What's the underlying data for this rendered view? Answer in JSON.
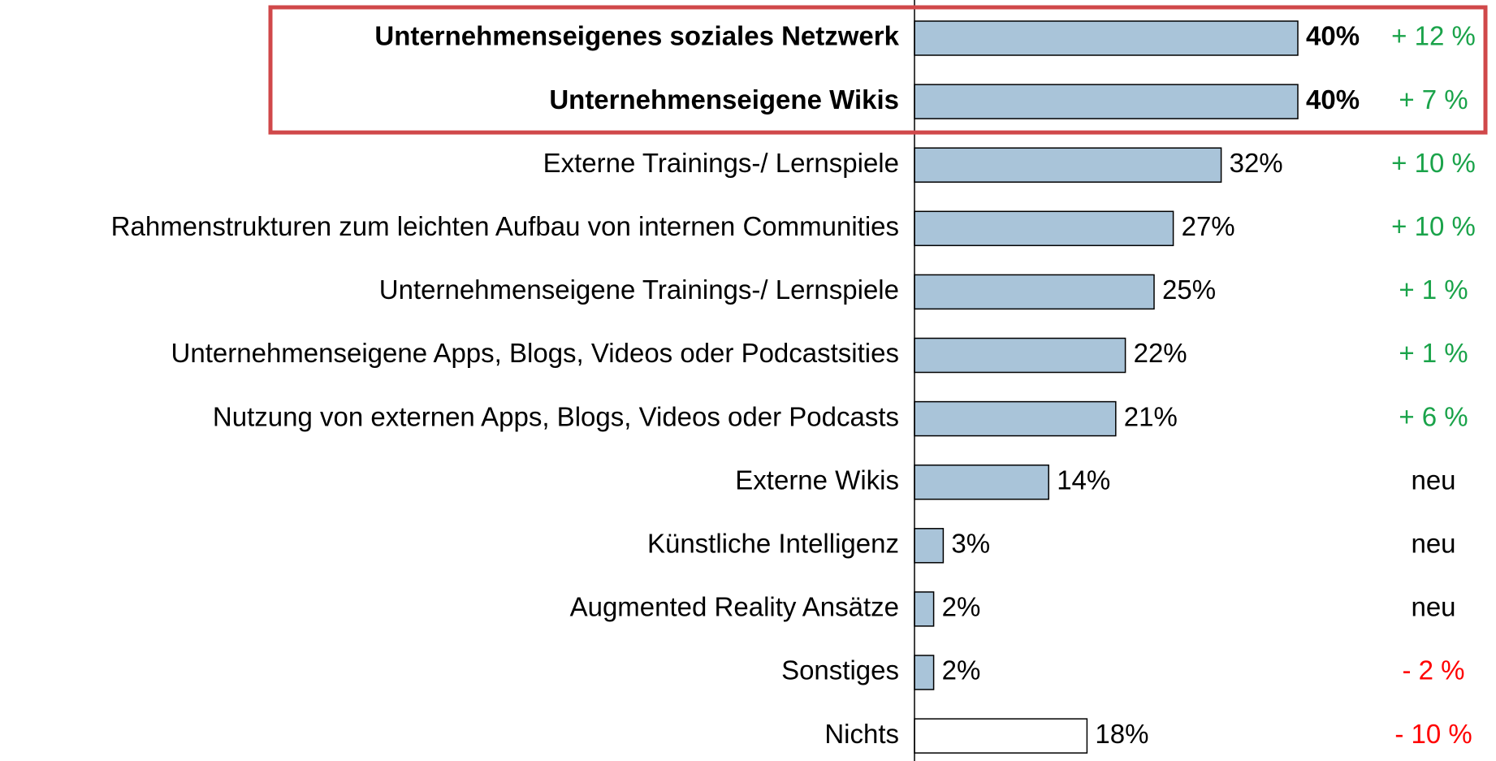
{
  "chart_data": {
    "type": "barh",
    "categories": [
      "Unternehmenseigenes soziales Netzwerk",
      "Unternehmenseigene Wikis",
      "Externe Trainings-/ Lernspiele",
      "Rahmenstrukturen zum leichten Aufbau von internen Communities",
      "Unternehmenseigene Trainings-/ Lernspiele",
      "Unternehmenseigene Apps, Blogs, Videos oder Podcastsities",
      "Nutzung von externen Apps, Blogs, Videos oder Podcasts",
      "Externe Wikis",
      "Künstliche Intelligenz",
      "Augmented Reality Ansätze",
      "Sonstiges",
      "Nichts"
    ],
    "values": [
      40,
      40,
      32,
      27,
      25,
      22,
      21,
      14,
      3,
      2,
      2,
      18
    ],
    "value_labels": [
      "40%",
      "40%",
      "32%",
      "27%",
      "25%",
      "22%",
      "21%",
      "14%",
      "3%",
      "2%",
      "2%",
      "18%"
    ],
    "colors": [
      "#a9c4d9",
      "#a9c4d9",
      "#a9c4d9",
      "#a9c4d9",
      "#a9c4d9",
      "#a9c4d9",
      "#a9c4d9",
      "#a9c4d9",
      "#a9c4d9",
      "#a9c4d9",
      "#a9c4d9",
      "#ffffff"
    ],
    "changes": [
      "+ 12 %",
      "+ 7 %",
      "+ 10 %",
      "+ 10 %",
      "+ 1 %",
      "+ 1 %",
      "+ 6 %",
      "neu",
      "neu",
      "neu",
      "- 2 %",
      "- 10 %"
    ],
    "change_colors": [
      "#1aa34a",
      "#1aa34a",
      "#1aa34a",
      "#1aa34a",
      "#1aa34a",
      "#1aa34a",
      "#1aa34a",
      "#000000",
      "#000000",
      "#000000",
      "#ff0000",
      "#ff0000"
    ],
    "highlighted": [
      0,
      1
    ],
    "highlight_color": "#d0484a",
    "xlim": [
      0,
      40
    ]
  }
}
